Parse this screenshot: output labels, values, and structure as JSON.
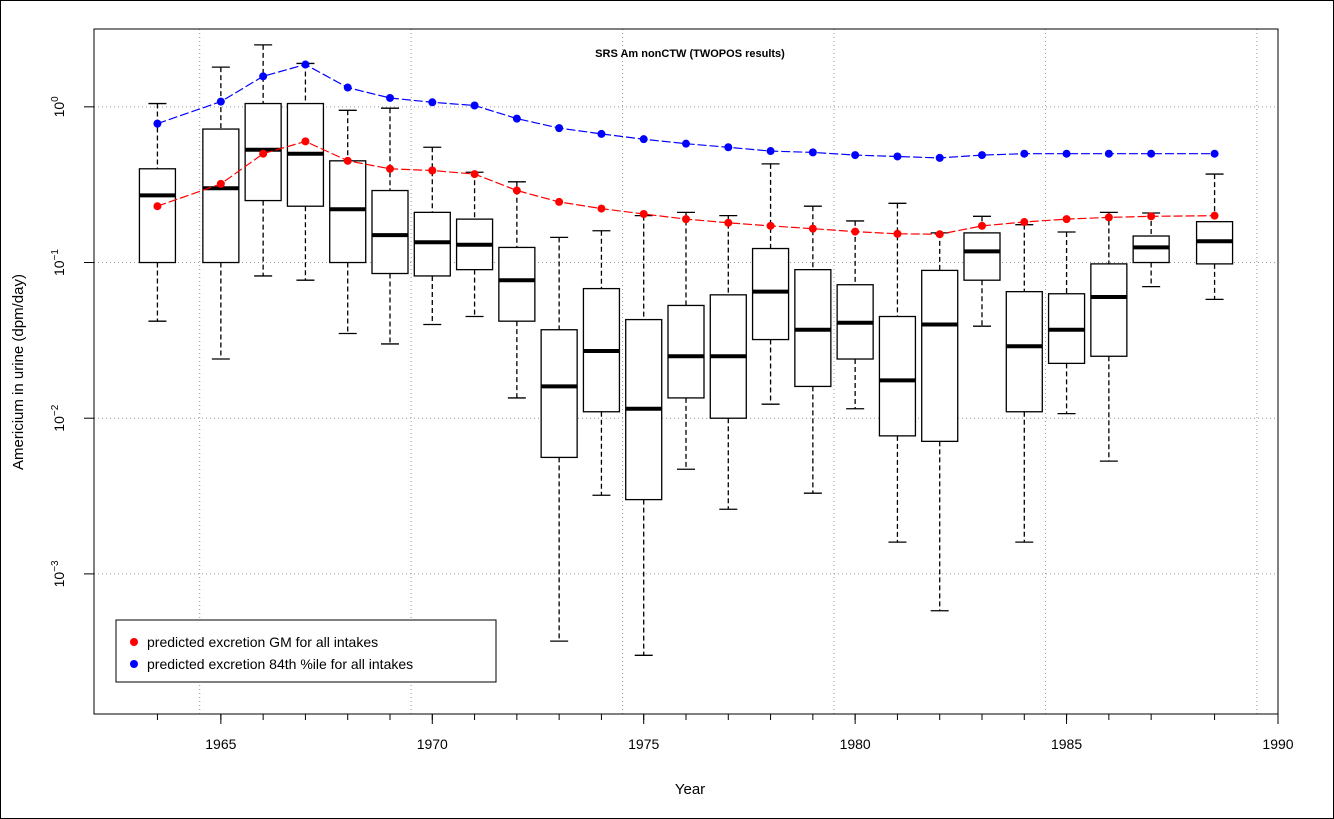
{
  "chart_data": {
    "type": "box",
    "title": "SRS Am nonCTW (TWOPOS results)",
    "xlabel": "Year",
    "ylabel": "Americium in urine (dpm/day)",
    "xlim": [
      1962.0,
      1990.0
    ],
    "ylim_log10": [
      -3.9,
      0.5
    ],
    "y_scale": "log",
    "x_ticks": [
      1965,
      1970,
      1975,
      1980,
      1985,
      1990
    ],
    "y_ticks": [
      {
        "exp": 0,
        "base": "10",
        "sup": "0"
      },
      {
        "exp": -1,
        "base": "10",
        "sup": "−1"
      },
      {
        "exp": -2,
        "base": "10",
        "sup": "−2"
      },
      {
        "exp": -3,
        "base": "10",
        "sup": "−3"
      }
    ],
    "grid": true,
    "legend_position": "bottom-left",
    "boxes": [
      {
        "x": 1963.5,
        "low": 0.042,
        "q1": 0.1,
        "median": 0.27,
        "q3": 0.4,
        "high": 1.05
      },
      {
        "x": 1965.0,
        "low": 0.024,
        "q1": 0.1,
        "median": 0.3,
        "q3": 0.72,
        "high": 1.8
      },
      {
        "x": 1966.0,
        "low": 0.082,
        "q1": 0.25,
        "median": 0.53,
        "q3": 1.05,
        "high": 2.5
      },
      {
        "x": 1967.0,
        "low": 0.077,
        "q1": 0.23,
        "median": 0.5,
        "q3": 1.05,
        "high": 1.9
      },
      {
        "x": 1968.0,
        "low": 0.035,
        "q1": 0.1,
        "median": 0.22,
        "q3": 0.45,
        "high": 0.95
      },
      {
        "x": 1969.0,
        "low": 0.03,
        "q1": 0.085,
        "median": 0.15,
        "q3": 0.29,
        "high": 0.98
      },
      {
        "x": 1970.0,
        "low": 0.04,
        "q1": 0.082,
        "median": 0.135,
        "q3": 0.21,
        "high": 0.55
      },
      {
        "x": 1971.0,
        "low": 0.045,
        "q1": 0.09,
        "median": 0.13,
        "q3": 0.19,
        "high": 0.38
      },
      {
        "x": 1972.0,
        "low": 0.0135,
        "q1": 0.042,
        "median": 0.077,
        "q3": 0.125,
        "high": 0.33
      },
      {
        "x": 1973.0,
        "low": 0.00037,
        "q1": 0.0056,
        "median": 0.016,
        "q3": 0.037,
        "high": 0.145
      },
      {
        "x": 1974.0,
        "low": 0.0032,
        "q1": 0.011,
        "median": 0.027,
        "q3": 0.068,
        "high": 0.16
      },
      {
        "x": 1975.0,
        "low": 0.0003,
        "q1": 0.003,
        "median": 0.0115,
        "q3": 0.043,
        "high": 0.2
      },
      {
        "x": 1976.0,
        "low": 0.0047,
        "q1": 0.0135,
        "median": 0.025,
        "q3": 0.053,
        "high": 0.21
      },
      {
        "x": 1977.0,
        "low": 0.0026,
        "q1": 0.01,
        "median": 0.025,
        "q3": 0.062,
        "high": 0.2
      },
      {
        "x": 1978.0,
        "low": 0.0123,
        "q1": 0.032,
        "median": 0.065,
        "q3": 0.123,
        "high": 0.43
      },
      {
        "x": 1979.0,
        "low": 0.0033,
        "q1": 0.016,
        "median": 0.037,
        "q3": 0.09,
        "high": 0.23
      },
      {
        "x": 1980.0,
        "low": 0.0115,
        "q1": 0.024,
        "median": 0.041,
        "q3": 0.072,
        "high": 0.185
      },
      {
        "x": 1981.0,
        "low": 0.0016,
        "q1": 0.0077,
        "median": 0.0175,
        "q3": 0.045,
        "high": 0.24
      },
      {
        "x": 1982.0,
        "low": 0.00058,
        "q1": 0.0071,
        "median": 0.04,
        "q3": 0.089,
        "high": 0.155
      },
      {
        "x": 1983.0,
        "low": 0.039,
        "q1": 0.077,
        "median": 0.118,
        "q3": 0.155,
        "high": 0.198
      },
      {
        "x": 1984.0,
        "low": 0.0016,
        "q1": 0.011,
        "median": 0.029,
        "q3": 0.065,
        "high": 0.175
      },
      {
        "x": 1985.0,
        "low": 0.0107,
        "q1": 0.0225,
        "median": 0.037,
        "q3": 0.063,
        "high": 0.157
      },
      {
        "x": 1986.0,
        "low": 0.0053,
        "q1": 0.025,
        "median": 0.06,
        "q3": 0.098,
        "high": 0.21
      },
      {
        "x": 1987.0,
        "low": 0.07,
        "q1": 0.1,
        "median": 0.125,
        "q3": 0.148,
        "high": 0.208
      },
      {
        "x": 1988.5,
        "low": 0.058,
        "q1": 0.098,
        "median": 0.137,
        "q3": 0.183,
        "high": 0.37
      }
    ],
    "series": [
      {
        "name": "predicted excretion GM for all intakes",
        "color": "#ff0000",
        "x": [
          1963.5,
          1965,
          1966,
          1967,
          1968,
          1969,
          1970,
          1971,
          1972,
          1973,
          1974,
          1975,
          1976,
          1977,
          1978,
          1979,
          1980,
          1981,
          1982,
          1983,
          1984,
          1985,
          1986,
          1987,
          1988.5
        ],
        "y": [
          0.23,
          0.32,
          0.5,
          0.6,
          0.45,
          0.4,
          0.39,
          0.37,
          0.29,
          0.245,
          0.222,
          0.205,
          0.19,
          0.18,
          0.172,
          0.165,
          0.158,
          0.153,
          0.152,
          0.172,
          0.182,
          0.19,
          0.195,
          0.198,
          0.2
        ]
      },
      {
        "name": "predicted excretion 84th %ile for all intakes",
        "color": "#0000ff",
        "x": [
          1963.5,
          1965,
          1966,
          1967,
          1968,
          1969,
          1970,
          1971,
          1972,
          1973,
          1974,
          1975,
          1976,
          1977,
          1978,
          1979,
          1980,
          1981,
          1982,
          1983,
          1984,
          1985,
          1986,
          1987,
          1988.5
        ],
        "y": [
          0.78,
          1.08,
          1.57,
          1.87,
          1.33,
          1.14,
          1.07,
          1.02,
          0.84,
          0.73,
          0.67,
          0.62,
          0.58,
          0.55,
          0.52,
          0.51,
          0.49,
          0.48,
          0.47,
          0.49,
          0.5,
          0.5,
          0.5,
          0.5,
          0.5
        ]
      }
    ]
  }
}
